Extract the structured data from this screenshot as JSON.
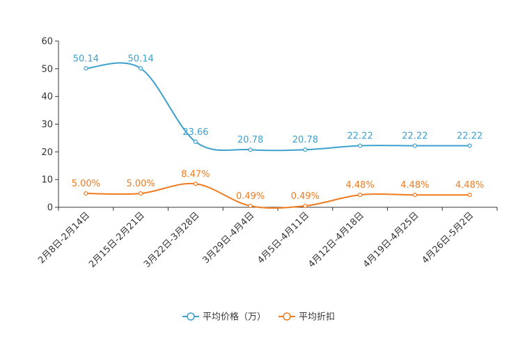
{
  "chart_data": {
    "type": "line",
    "title": "",
    "xlabel": "",
    "ylabel": "",
    "ylim": [
      0,
      60
    ],
    "yticks": [
      "0",
      "10",
      "20",
      "30",
      "40",
      "50",
      "60"
    ],
    "grid": false,
    "legend_position": "bottom",
    "categories": [
      "2月8日-2月14日",
      "2月15日-2月21日",
      "3月22日-3月28日",
      "3月29日-4月4日",
      "4月5日-4月11日",
      "4月12日-4月18日",
      "4月19日-4月25日",
      "4月26日-5月2日"
    ],
    "series": [
      {
        "name": "平均价格（万）",
        "color": "#3ba0cc",
        "values": [
          50.14,
          50.14,
          23.66,
          20.78,
          20.78,
          22.22,
          22.22,
          22.22
        ],
        "labels": [
          "50.14",
          "50.14",
          "23.66",
          "20.78",
          "20.78",
          "22.22",
          "22.22",
          "22.22"
        ]
      },
      {
        "name": "平均折扣",
        "color": "#f07a1e",
        "values": [
          5.0,
          5.0,
          8.47,
          0.49,
          0.49,
          4.48,
          4.48,
          4.48
        ],
        "labels": [
          "5.00%",
          "5.00%",
          "8.47%",
          "0.49%",
          "0.49%",
          "4.48%",
          "4.48%",
          "4.48%"
        ]
      }
    ]
  }
}
